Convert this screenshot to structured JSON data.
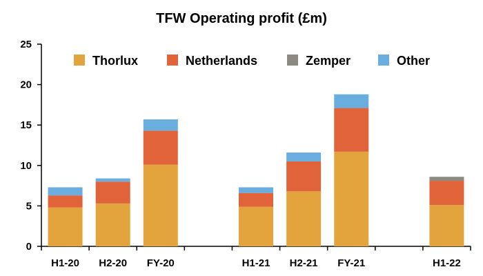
{
  "chart_data": {
    "type": "bar",
    "stacked": true,
    "title": "TFW Operating profit (£m)",
    "xlabel": "",
    "ylabel": "",
    "ylim": [
      0,
      25
    ],
    "yticks": [
      0,
      5,
      10,
      15,
      20,
      25
    ],
    "categories": [
      "H1-20",
      "H2-20",
      "FY-20",
      "",
      "H1-21",
      "H2-21",
      "FY-21",
      "",
      "H1-22"
    ],
    "series": [
      {
        "name": "Thorlux",
        "color": "#e3a43d",
        "values": [
          4.8,
          5.3,
          10.1,
          null,
          4.9,
          6.8,
          11.7,
          null,
          5.1
        ]
      },
      {
        "name": "Netherlands",
        "color": "#e0633a",
        "values": [
          1.5,
          2.7,
          4.2,
          null,
          1.7,
          3.7,
          5.4,
          null,
          3.0
        ]
      },
      {
        "name": "Zemper",
        "color": "#8c8a82",
        "values": [
          0,
          0,
          0,
          null,
          0,
          0,
          0,
          null,
          0.5
        ]
      },
      {
        "name": "Other",
        "color": "#6aaee0",
        "values": [
          1.0,
          0.4,
          1.4,
          null,
          0.7,
          1.1,
          1.7,
          null,
          0
        ]
      }
    ],
    "legend_position": "top",
    "grid": false
  }
}
